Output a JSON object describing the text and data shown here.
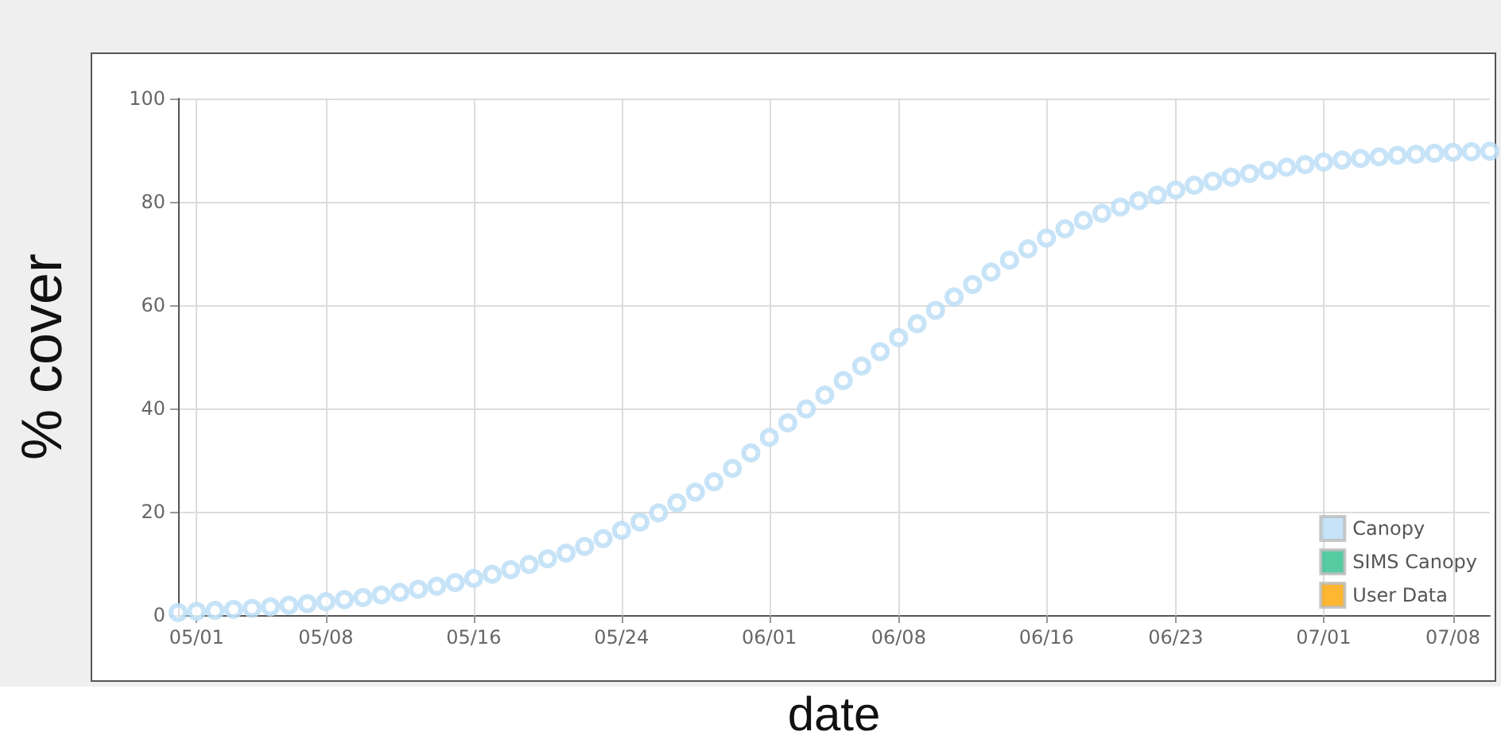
{
  "chart_data": {
    "type": "scatter",
    "xlabel": "date",
    "ylabel": "% cover",
    "x": [
      "--04-30",
      "--05-01",
      "--05-02",
      "--05-03",
      "--05-04",
      "--05-05",
      "--05-06",
      "--05-07",
      "--05-08",
      "--05-09",
      "--05-10",
      "--05-11",
      "--05-12",
      "--05-13",
      "--05-14",
      "--05-15",
      "--05-16",
      "--05-17",
      "--05-18",
      "--05-19",
      "--05-20",
      "--05-21",
      "--05-22",
      "--05-23",
      "--05-24",
      "--05-25",
      "--05-26",
      "--05-27",
      "--05-28",
      "--05-29",
      "--05-30",
      "--05-31",
      "--06-01",
      "--06-02",
      "--06-03",
      "--06-04",
      "--06-05",
      "--06-06",
      "--06-07",
      "--06-08",
      "--06-09",
      "--06-10",
      "--06-11",
      "--06-12",
      "--06-13",
      "--06-14",
      "--06-15",
      "--06-16",
      "--06-17",
      "--06-18",
      "--06-19",
      "--06-20",
      "--06-21",
      "--06-22",
      "--06-23",
      "--06-24",
      "--06-25",
      "--06-26",
      "--06-27",
      "--06-28",
      "--06-29",
      "--06-30",
      "--07-01",
      "--07-02",
      "--07-03",
      "--07-04",
      "--07-05",
      "--07-06",
      "--07-07",
      "--07-08",
      "--07-09",
      "--07-10"
    ],
    "series": [
      {
        "name": "Canopy",
        "color": "#b9dcf5",
        "values": [
          0.5,
          0.7,
          0.9,
          1.1,
          1.3,
          1.6,
          1.9,
          2.2,
          2.6,
          3.0,
          3.4,
          3.9,
          4.4,
          5.0,
          5.6,
          6.3,
          7.1,
          7.9,
          8.8,
          9.8,
          10.9,
          12.0,
          13.3,
          14.8,
          16.4,
          18.0,
          19.8,
          21.7,
          23.8,
          25.8,
          28.4,
          31.4,
          34.4,
          37.2,
          39.9,
          42.6,
          45.4,
          48.2,
          51.0,
          53.7,
          56.4,
          59.0,
          61.6,
          64.0,
          66.4,
          68.7,
          70.9,
          73.0,
          74.8,
          76.4,
          77.8,
          79.0,
          80.2,
          81.3,
          82.3,
          83.2,
          84.0,
          84.8,
          85.5,
          86.1,
          86.7,
          87.2,
          87.7,
          88.1,
          88.4,
          88.7,
          89.0,
          89.2,
          89.4,
          89.6,
          89.7,
          89.8
        ]
      },
      {
        "name": "SIMS Canopy",
        "color": "#2dbf8c",
        "values": [
          null,
          null,
          null,
          null,
          null,
          null,
          null,
          null,
          null,
          null,
          null,
          null,
          null,
          null,
          null,
          null,
          null,
          null,
          null,
          null,
          null,
          null,
          null,
          null,
          null,
          null,
          null,
          null,
          null,
          null,
          null,
          null,
          null,
          null,
          null,
          null,
          null,
          null,
          null,
          null,
          null,
          null,
          null,
          null,
          null,
          null,
          null,
          null,
          null,
          null,
          null,
          null,
          null,
          null,
          null,
          null,
          null,
          null,
          null,
          null,
          null,
          null,
          null,
          null,
          null,
          null,
          null,
          null,
          null,
          null,
          null,
          null
        ]
      },
      {
        "name": "User Data",
        "color": "#ffa500",
        "values": [
          null,
          null,
          null,
          null,
          null,
          null,
          null,
          null,
          null,
          null,
          null,
          null,
          null,
          null,
          null,
          null,
          null,
          null,
          null,
          null,
          null,
          null,
          null,
          null,
          null,
          null,
          null,
          null,
          null,
          null,
          null,
          null,
          null,
          null,
          null,
          null,
          null,
          null,
          null,
          null,
          null,
          null,
          null,
          null,
          null,
          null,
          null,
          null,
          null,
          null,
          null,
          null,
          null,
          null,
          null,
          null,
          null,
          null,
          null,
          null,
          null,
          null,
          null,
          null,
          null,
          null,
          null,
          null,
          null,
          null,
          null,
          null
        ]
      }
    ],
    "xlim": [
      "--04-30",
      "--07-10"
    ],
    "xticks": [
      {
        "value": "--05-01",
        "label": "05/01"
      },
      {
        "value": "--05-08",
        "label": "05/08"
      },
      {
        "value": "--05-16",
        "label": "05/16"
      },
      {
        "value": "--05-24",
        "label": "05/24"
      },
      {
        "value": "--06-01",
        "label": "06/01"
      },
      {
        "value": "--06-08",
        "label": "06/08"
      },
      {
        "value": "--06-16",
        "label": "06/16"
      },
      {
        "value": "--06-23",
        "label": "06/23"
      },
      {
        "value": "--07-01",
        "label": "07/01"
      },
      {
        "value": "--07-08",
        "label": "07/08"
      }
    ],
    "ylim": [
      0,
      100
    ],
    "yticks": [
      0,
      20,
      40,
      60,
      80,
      100
    ],
    "grid": true,
    "legend": "bottom right",
    "marker": "circle"
  }
}
